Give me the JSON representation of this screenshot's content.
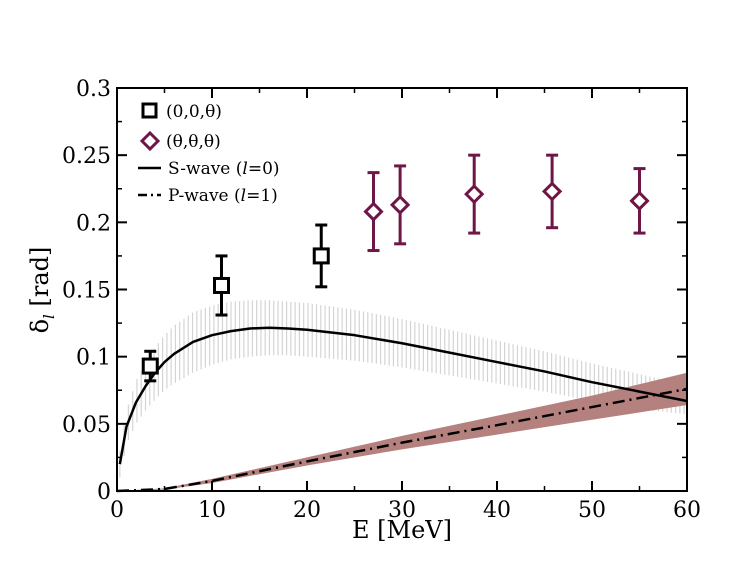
{
  "chart_data": {
    "type": "scatter",
    "xlabel": "E [MeV]",
    "ylabel_main": "δ",
    "ylabel_sub": "l",
    "ylabel_unit": "[rad]",
    "xlim": [
      0,
      60
    ],
    "ylim": [
      0,
      0.3
    ],
    "xticks": [
      "0",
      "10",
      "20",
      "30",
      "40",
      "50",
      "60"
    ],
    "yticks": [
      "0",
      "0.05",
      "0.1",
      "0.15",
      "0.2",
      "0.25",
      "0.3"
    ],
    "colors": {
      "axis": "#000000",
      "theta_theta_theta": "#6e1645",
      "s_band": "#d4d4d4",
      "p_band": "#b5817e",
      "curve": "#000000"
    },
    "series": [
      {
        "name": "(0,0,θ)",
        "marker": "square",
        "points": [
          {
            "x": 3.5,
            "y": 0.093,
            "err": 0.011
          },
          {
            "x": 11.0,
            "y": 0.153,
            "err": 0.022
          },
          {
            "x": 21.5,
            "y": 0.175,
            "err": 0.023
          }
        ]
      },
      {
        "name": "(θ,θ,θ)",
        "marker": "diamond",
        "points": [
          {
            "x": 27.0,
            "y": 0.208,
            "err": 0.029
          },
          {
            "x": 29.8,
            "y": 0.213,
            "err": 0.029
          },
          {
            "x": 37.6,
            "y": 0.221,
            "err": 0.029
          },
          {
            "x": 45.8,
            "y": 0.223,
            "err": 0.027
          },
          {
            "x": 55.0,
            "y": 0.216,
            "err": 0.024
          }
        ]
      }
    ],
    "curves": [
      {
        "name": "S-wave (l=0)",
        "legend_prefix": "S-wave (",
        "legend_l": "l",
        "legend_suffix": "=0)",
        "style": "solid",
        "points": [
          [
            0.3,
            0.02
          ],
          [
            1,
            0.048
          ],
          [
            2,
            0.066
          ],
          [
            3,
            0.078
          ],
          [
            4,
            0.088
          ],
          [
            5,
            0.096
          ],
          [
            6,
            0.102
          ],
          [
            8,
            0.111
          ],
          [
            10,
            0.116
          ],
          [
            12,
            0.119
          ],
          [
            14,
            0.121
          ],
          [
            16,
            0.1215
          ],
          [
            18,
            0.121
          ],
          [
            20,
            0.12
          ],
          [
            25,
            0.116
          ],
          [
            30,
            0.11
          ],
          [
            35,
            0.103
          ],
          [
            40,
            0.096
          ],
          [
            45,
            0.089
          ],
          [
            50,
            0.081
          ],
          [
            55,
            0.074
          ],
          [
            60,
            0.067
          ]
        ],
        "band": [
          [
            0.3,
            0.01,
            0.03
          ],
          [
            1,
            0.035,
            0.06
          ],
          [
            2,
            0.05,
            0.082
          ],
          [
            3,
            0.06,
            0.096
          ],
          [
            4,
            0.068,
            0.107
          ],
          [
            5,
            0.075,
            0.116
          ],
          [
            6,
            0.08,
            0.123
          ],
          [
            8,
            0.088,
            0.133
          ],
          [
            10,
            0.094,
            0.138
          ],
          [
            12,
            0.098,
            0.141
          ],
          [
            14,
            0.1,
            0.142
          ],
          [
            16,
            0.101,
            0.142
          ],
          [
            18,
            0.101,
            0.141
          ],
          [
            20,
            0.1,
            0.14
          ],
          [
            25,
            0.097,
            0.135
          ],
          [
            30,
            0.092,
            0.128
          ],
          [
            35,
            0.086,
            0.12
          ],
          [
            40,
            0.08,
            0.112
          ],
          [
            45,
            0.074,
            0.104
          ],
          [
            50,
            0.067,
            0.095
          ],
          [
            55,
            0.061,
            0.087
          ],
          [
            60,
            0.057,
            0.079
          ]
        ]
      },
      {
        "name": "P-wave (l=1)",
        "legend_prefix": "P-wave (",
        "legend_l": "l",
        "legend_suffix": "=1)",
        "style": "dashdot",
        "points": [
          [
            0,
            0
          ],
          [
            5,
            0.0015
          ],
          [
            10,
            0.0075
          ],
          [
            20,
            0.022
          ],
          [
            30,
            0.036
          ],
          [
            40,
            0.049
          ],
          [
            50,
            0.0625
          ],
          [
            60,
            0.076
          ]
        ],
        "band": [
          [
            0,
            0,
            0
          ],
          [
            5,
            0.001,
            0.002
          ],
          [
            10,
            0.006,
            0.009
          ],
          [
            20,
            0.019,
            0.025
          ],
          [
            30,
            0.031,
            0.041
          ],
          [
            40,
            0.042,
            0.056
          ],
          [
            50,
            0.053,
            0.071
          ],
          [
            60,
            0.064,
            0.088
          ]
        ]
      }
    ]
  }
}
